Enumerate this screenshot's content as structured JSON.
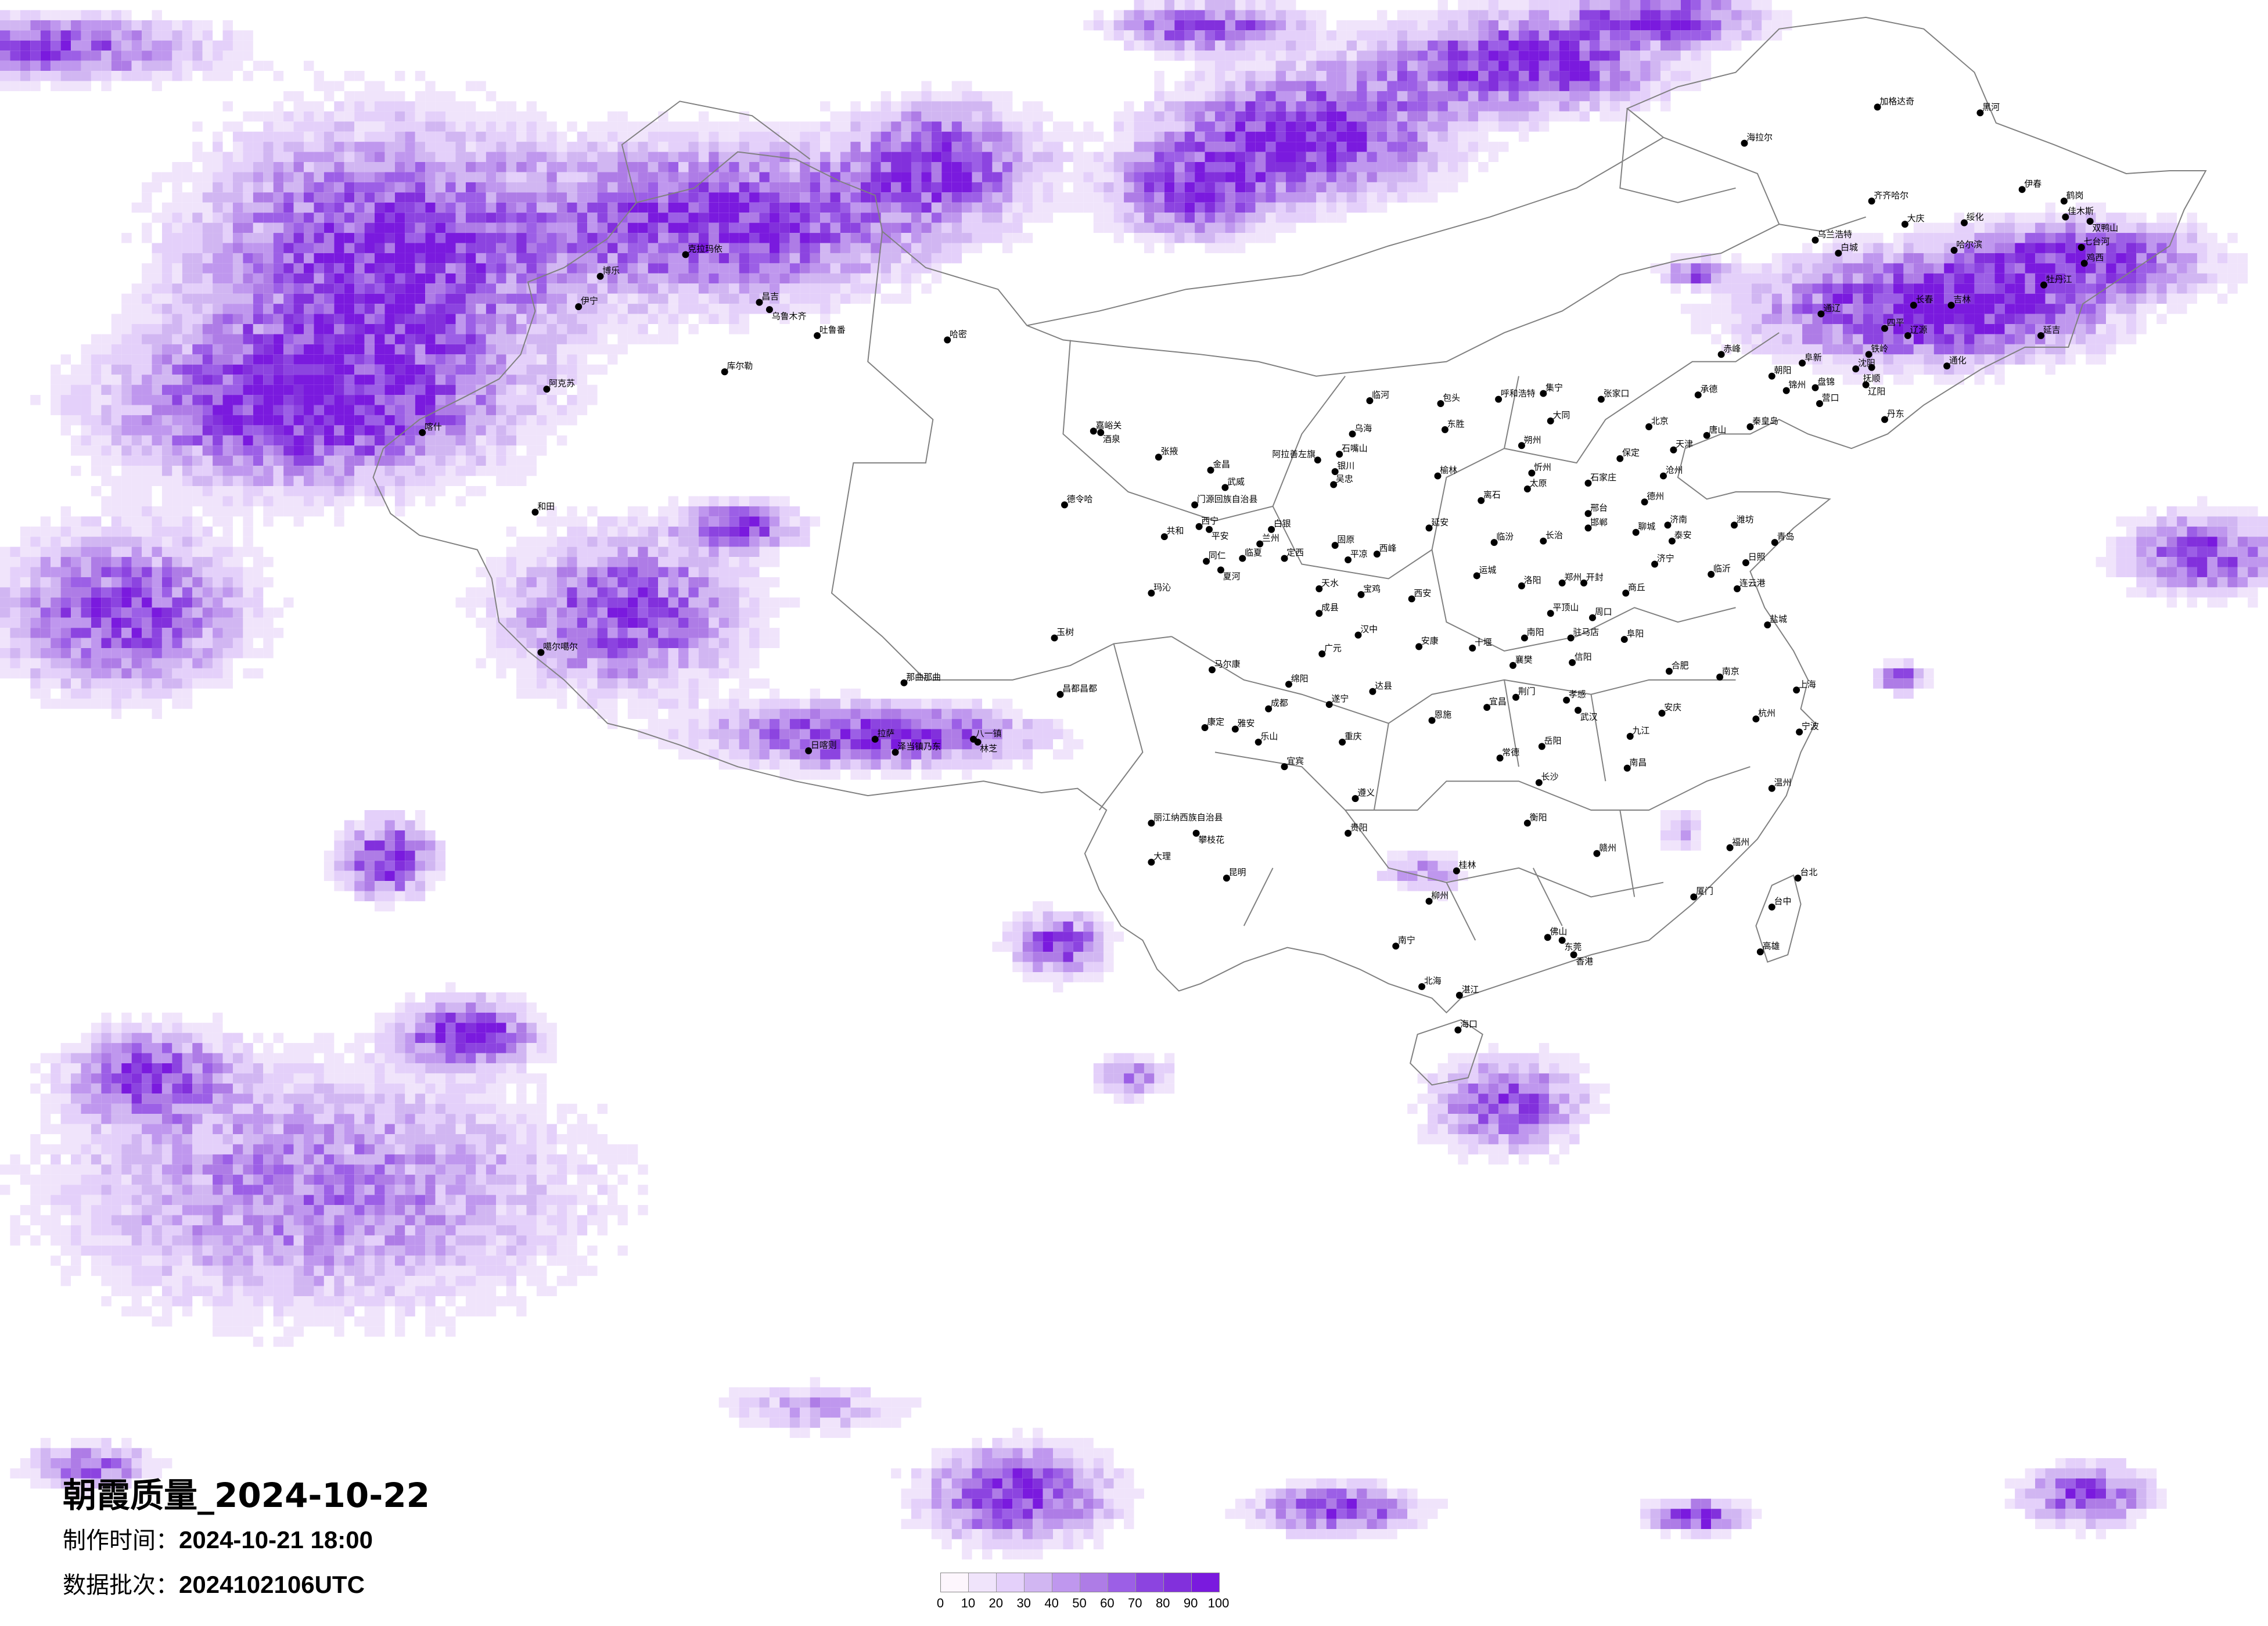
{
  "title": "朝霞质量_2024-10-22",
  "production_time": {
    "label": "制作时间：",
    "value": "2024-10-21 18:00"
  },
  "data_batch": {
    "label": "数据批次：",
    "value": "2024102106UTC"
  },
  "legend": {
    "ticks": [
      "0",
      "10",
      "20",
      "30",
      "40",
      "50",
      "60",
      "70",
      "80",
      "90",
      "100"
    ],
    "colors": [
      "#fdf6fd",
      "#f0e4fb",
      "#e4d0fa",
      "#d1b6f2",
      "#bf97ee",
      "#ae7ce6",
      "#9c5fe6",
      "#8c44e0",
      "#8230dc",
      "#7a1ade"
    ]
  },
  "colors": {
    "border": "#808080",
    "city_dot": "#000000"
  },
  "cities": [
    "包头",
    "呼和浩特",
    "集宁",
    "张家口",
    "承德",
    "大同",
    "东胜",
    "北京",
    "唐山",
    "秦皇岛",
    "天津",
    "朔州",
    "保定",
    "忻州",
    "榆林",
    "沧州",
    "石家庄",
    "太原",
    "离石",
    "德州",
    "邢台",
    "济南",
    "潍坊",
    "延安",
    "邯郸",
    "聊城",
    "泰安",
    "临汾",
    "长治",
    "青岛",
    "济宁",
    "日照",
    "临沂",
    "运城",
    "洛阳",
    "郑州",
    "开封",
    "连云港",
    "西安",
    "商丘",
    "平顶山",
    "周口",
    "盐城",
    "汉中",
    "安康",
    "十堰",
    "南阳",
    "驻马店",
    "阜阳",
    "广元",
    "马尔康",
    "襄樊",
    "信阳",
    "合肥",
    "南京",
    "绵阳",
    "达县",
    "成都",
    "遂宁",
    "宜昌",
    "荆门",
    "孝感",
    "武汉",
    "上海",
    "杭州",
    "康定",
    "雅安",
    "乐山",
    "重庆",
    "恩施",
    "安庆",
    "宁波",
    "九江",
    "岳阳",
    "常德",
    "宜宾",
    "南昌",
    "长沙",
    "贵阳",
    "遵义",
    "昆明",
    "温州",
    "衡阳",
    "福州",
    "赣州",
    "桂林",
    "柳州",
    "南宁",
    "佛山",
    "东莞",
    "香港",
    "厦门",
    "台北",
    "台中",
    "高雄",
    "海口",
    "北海",
    "湛江",
    "大理",
    "丽江纳西族自治县",
    "攀枝花",
    "加格达奇",
    "黑河",
    "海拉尔",
    "伊春",
    "齐齐哈尔",
    "鹤岗",
    "大庆",
    "绥化",
    "佳木斯",
    "双鸭山",
    "乌兰浩特",
    "白城",
    "哈尔滨",
    "七台河",
    "鸡西",
    "牡丹江",
    "长春",
    "吉林",
    "通辽",
    "四平",
    "辽源",
    "延吉",
    "赤峰",
    "铁岭",
    "阜新",
    "沈阳",
    "抚顺",
    "通化",
    "朝阳",
    "辽阳",
    "锦州",
    "盘锦",
    "营口",
    "丹东",
    "克拉玛依",
    "博乐",
    "伊宁",
    "昌吉",
    "乌鲁木齐",
    "吐鲁番",
    "哈密",
    "库尔勒",
    "阿克苏",
    "喀什",
    "和田",
    "嘉峪关",
    "酒泉",
    "张掖",
    "德令哈",
    "共和",
    "玛沁",
    "玉树",
    "噶尔噶尔",
    "那曲那曲",
    "昌都昌都",
    "拉萨",
    "日喀则",
    "泽当镇乃东",
    "八一镇",
    "林芝",
    "临河",
    "乌海",
    "石嘴山",
    "阿拉善左旗",
    "银川",
    "吴忠",
    "金昌",
    "武威",
    "门源回族自治县",
    "西宁",
    "平安",
    "白银",
    "兰州",
    "临夏",
    "同仁",
    "夏河",
    "定西",
    "固原",
    "平凉",
    "西峰",
    "天水",
    "宝鸡",
    "成县"
  ]
}
